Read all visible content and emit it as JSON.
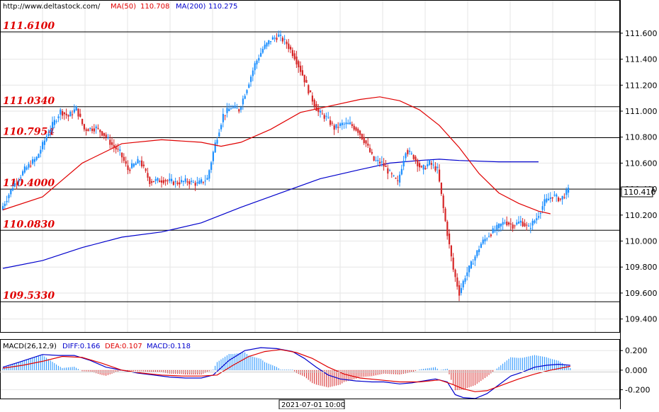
{
  "header": {
    "site": "http://www.deltastock.com/",
    "ma50_label": "MA(50)",
    "ma50_value": "110.708",
    "ma200_label": "MA(200)",
    "ma200_value": "110.275"
  },
  "current_price": "110.410",
  "macd_header": {
    "label": "MACD(26,12,9)",
    "diff": "DIFF:0.166",
    "dea": "DEA:0.107",
    "macd": "MACD:0.118"
  },
  "time_label": "2021-07-01 10:00",
  "colors": {
    "up": "#1e90ff",
    "down": "#d62728",
    "ma50": "#e00000",
    "ma200": "#0000cc",
    "level_text": "#e00000"
  },
  "chart_data": [
    {
      "type": "candlestick",
      "ylim": [
        109.3,
        111.85
      ],
      "yticks": [
        "111.600",
        "111.400",
        "111.200",
        "111.000",
        "110.800",
        "110.600",
        "110.400",
        "110.200",
        "110.000",
        "109.800",
        "109.600",
        "109.400"
      ],
      "levels": [
        {
          "value": 111.61,
          "label": "111.6100"
        },
        {
          "value": 111.034,
          "label": "111.0340"
        },
        {
          "value": 110.7954,
          "label": "110.7954"
        },
        {
          "value": 110.4,
          "label": "110.4000"
        },
        {
          "value": 110.083,
          "label": "110.0830"
        },
        {
          "value": 109.533,
          "label": "109.5330"
        }
      ],
      "price_path": [
        [
          0,
          110.24
        ],
        [
          6,
          110.42
        ],
        [
          12,
          110.55
        ],
        [
          18,
          110.64
        ],
        [
          24,
          110.84
        ],
        [
          30,
          111.0
        ],
        [
          34,
          110.96
        ],
        [
          38,
          111.02
        ],
        [
          42,
          110.86
        ],
        [
          48,
          110.87
        ],
        [
          52,
          110.82
        ],
        [
          56,
          110.74
        ],
        [
          60,
          110.68
        ],
        [
          64,
          110.55
        ],
        [
          70,
          110.62
        ],
        [
          75,
          110.46
        ],
        [
          82,
          110.47
        ],
        [
          88,
          110.45
        ],
        [
          94,
          110.46
        ],
        [
          99,
          110.44
        ],
        [
          104,
          110.48
        ],
        [
          108,
          110.75
        ],
        [
          112,
          110.97
        ],
        [
          116,
          111.03
        ],
        [
          120,
          111.01
        ],
        [
          124,
          111.18
        ],
        [
          128,
          111.36
        ],
        [
          132,
          111.48
        ],
        [
          136,
          111.55
        ],
        [
          140,
          111.58
        ],
        [
          144,
          111.52
        ],
        [
          148,
          111.42
        ],
        [
          152,
          111.28
        ],
        [
          156,
          111.12
        ],
        [
          160,
          110.99
        ],
        [
          164,
          110.95
        ],
        [
          168,
          110.87
        ],
        [
          172,
          110.9
        ],
        [
          176,
          110.9
        ],
        [
          180,
          110.85
        ],
        [
          184,
          110.75
        ],
        [
          188,
          110.62
        ],
        [
          192,
          110.6
        ],
        [
          196,
          110.52
        ],
        [
          200,
          110.45
        ],
        [
          204,
          110.7
        ],
        [
          208,
          110.65
        ],
        [
          212,
          110.55
        ],
        [
          216,
          110.6
        ],
        [
          220,
          110.55
        ],
        [
          224,
          110.15
        ],
        [
          228,
          109.78
        ],
        [
          231,
          109.6
        ],
        [
          234,
          109.73
        ],
        [
          238,
          109.85
        ],
        [
          242,
          109.98
        ],
        [
          246,
          110.05
        ],
        [
          250,
          110.1
        ],
        [
          254,
          110.15
        ],
        [
          258,
          110.12
        ],
        [
          262,
          110.15
        ],
        [
          266,
          110.1
        ],
        [
          270,
          110.18
        ],
        [
          274,
          110.3
        ],
        [
          278,
          110.35
        ],
        [
          282,
          110.32
        ],
        [
          286,
          110.39
        ]
      ],
      "candle_range_high": 111.62,
      "candle_range_low": 109.52,
      "ma50_path": [
        [
          0,
          110.24
        ],
        [
          20,
          110.34
        ],
        [
          40,
          110.6
        ],
        [
          60,
          110.75
        ],
        [
          80,
          110.78
        ],
        [
          100,
          110.76
        ],
        [
          110,
          110.73
        ],
        [
          120,
          110.76
        ],
        [
          135,
          110.86
        ],
        [
          150,
          110.99
        ],
        [
          165,
          111.04
        ],
        [
          180,
          111.09
        ],
        [
          190,
          111.11
        ],
        [
          200,
          111.08
        ],
        [
          210,
          111.01
        ],
        [
          220,
          110.89
        ],
        [
          230,
          110.72
        ],
        [
          240,
          110.52
        ],
        [
          250,
          110.37
        ],
        [
          260,
          110.29
        ],
        [
          270,
          110.23
        ],
        [
          276,
          110.21
        ]
      ],
      "ma200_path": [
        [
          0,
          109.79
        ],
        [
          20,
          109.85
        ],
        [
          40,
          109.95
        ],
        [
          60,
          110.03
        ],
        [
          80,
          110.07
        ],
        [
          100,
          110.14
        ],
        [
          120,
          110.26
        ],
        [
          140,
          110.37
        ],
        [
          160,
          110.48
        ],
        [
          180,
          110.55
        ],
        [
          195,
          110.6
        ],
        [
          210,
          110.62
        ],
        [
          220,
          110.63
        ],
        [
          230,
          110.62
        ],
        [
          250,
          110.61
        ],
        [
          270,
          110.61
        ]
      ]
    },
    {
      "type": "macd",
      "ylim": [
        -0.29,
        0.31
      ],
      "yticks": [
        "0.200",
        "0.000",
        "-0.200"
      ],
      "diff_path": [
        [
          0,
          0.03
        ],
        [
          8,
          0.08
        ],
        [
          14,
          0.12
        ],
        [
          20,
          0.16
        ],
        [
          28,
          0.15
        ],
        [
          36,
          0.15
        ],
        [
          44,
          0.1
        ],
        [
          52,
          0.03
        ],
        [
          60,
          0.0
        ],
        [
          68,
          -0.03
        ],
        [
          76,
          -0.05
        ],
        [
          84,
          -0.07
        ],
        [
          92,
          -0.08
        ],
        [
          100,
          -0.08
        ],
        [
          106,
          -0.05
        ],
        [
          114,
          0.1
        ],
        [
          122,
          0.2
        ],
        [
          130,
          0.23
        ],
        [
          138,
          0.22
        ],
        [
          146,
          0.19
        ],
        [
          152,
          0.12
        ],
        [
          158,
          0.03
        ],
        [
          164,
          -0.05
        ],
        [
          170,
          -0.09
        ],
        [
          178,
          -0.11
        ],
        [
          186,
          -0.12
        ],
        [
          192,
          -0.12
        ],
        [
          200,
          -0.14
        ],
        [
          206,
          -0.13
        ],
        [
          212,
          -0.11
        ],
        [
          218,
          -0.09
        ],
        [
          224,
          -0.12
        ],
        [
          228,
          -0.25
        ],
        [
          232,
          -0.28
        ],
        [
          238,
          -0.29
        ],
        [
          244,
          -0.24
        ],
        [
          250,
          -0.15
        ],
        [
          256,
          -0.06
        ],
        [
          262,
          -0.02
        ],
        [
          268,
          0.03
        ],
        [
          274,
          0.05
        ],
        [
          280,
          0.06
        ],
        [
          286,
          0.05
        ]
      ],
      "dea_path": [
        [
          0,
          0.02
        ],
        [
          10,
          0.05
        ],
        [
          20,
          0.09
        ],
        [
          30,
          0.14
        ],
        [
          40,
          0.13
        ],
        [
          50,
          0.07
        ],
        [
          60,
          0.0
        ],
        [
          70,
          -0.03
        ],
        [
          80,
          -0.05
        ],
        [
          90,
          -0.06
        ],
        [
          100,
          -0.06
        ],
        [
          108,
          -0.05
        ],
        [
          116,
          0.05
        ],
        [
          124,
          0.14
        ],
        [
          132,
          0.19
        ],
        [
          140,
          0.21
        ],
        [
          148,
          0.18
        ],
        [
          156,
          0.12
        ],
        [
          164,
          0.03
        ],
        [
          172,
          -0.04
        ],
        [
          180,
          -0.08
        ],
        [
          190,
          -0.1
        ],
        [
          200,
          -0.12
        ],
        [
          210,
          -0.12
        ],
        [
          220,
          -0.1
        ],
        [
          226,
          -0.14
        ],
        [
          232,
          -0.19
        ],
        [
          238,
          -0.22
        ],
        [
          244,
          -0.21
        ],
        [
          252,
          -0.15
        ],
        [
          260,
          -0.09
        ],
        [
          268,
          -0.04
        ],
        [
          276,
          0.0
        ],
        [
          286,
          0.04
        ]
      ]
    }
  ]
}
